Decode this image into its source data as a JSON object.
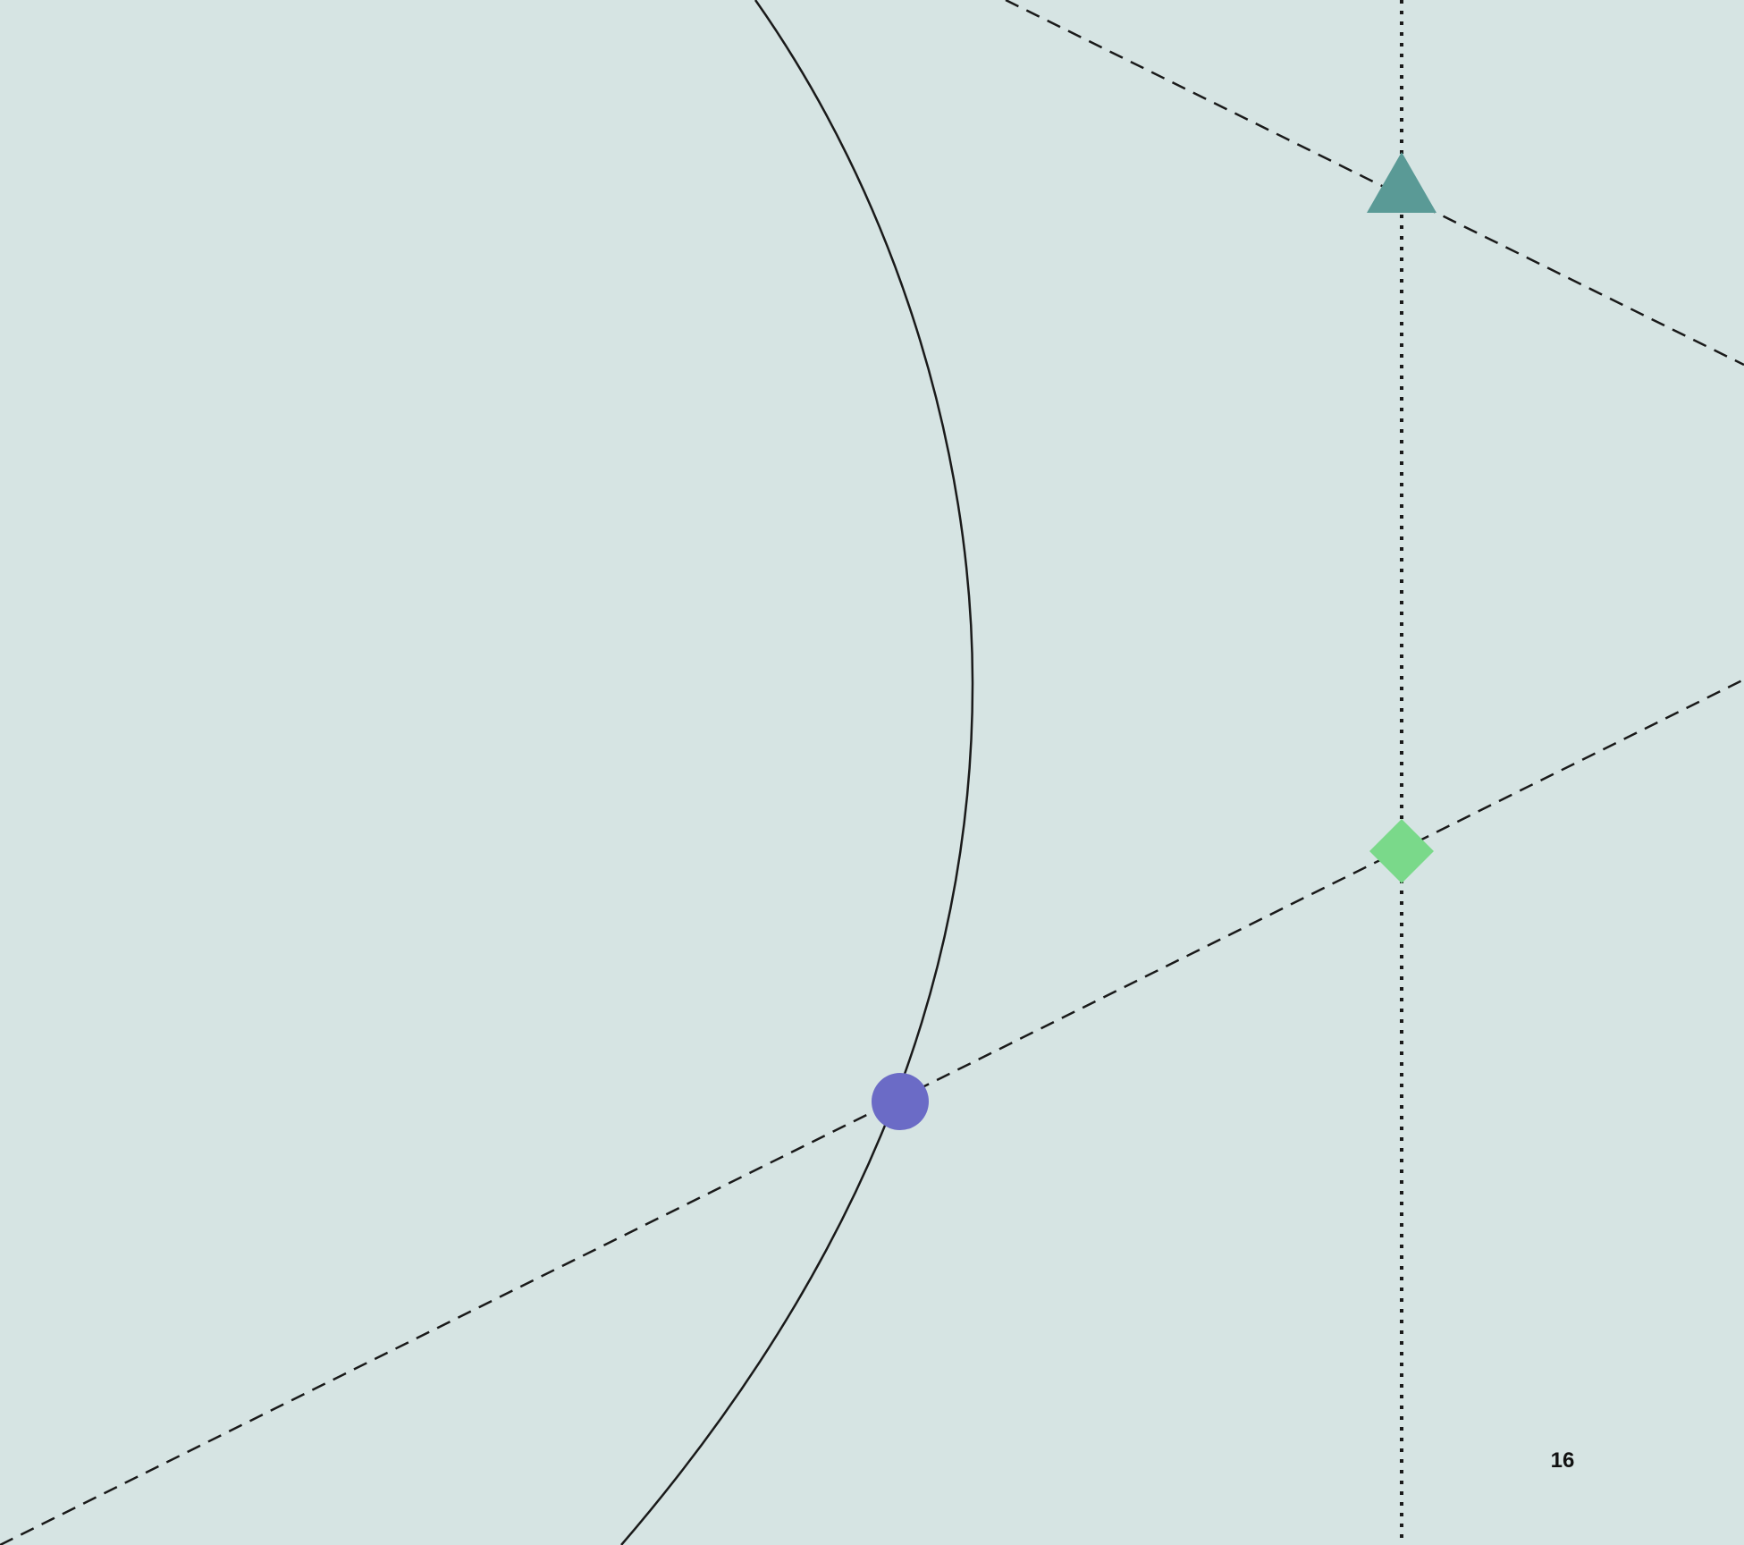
{
  "page": {
    "number": "16"
  },
  "colors": {
    "background": "#d6e4e3",
    "circle_stroke": "#1a1a1a",
    "line_stroke": "#1a1a1a",
    "triangle": "#5a9a96",
    "diamond": "#7ad98a",
    "circle_marker": "#6b6bc6"
  },
  "markers": [
    {
      "shape": "triangle",
      "color": "#5a9a96"
    },
    {
      "shape": "diamond",
      "color": "#7ad98a"
    },
    {
      "shape": "circle",
      "color": "#6b6bc6"
    }
  ]
}
